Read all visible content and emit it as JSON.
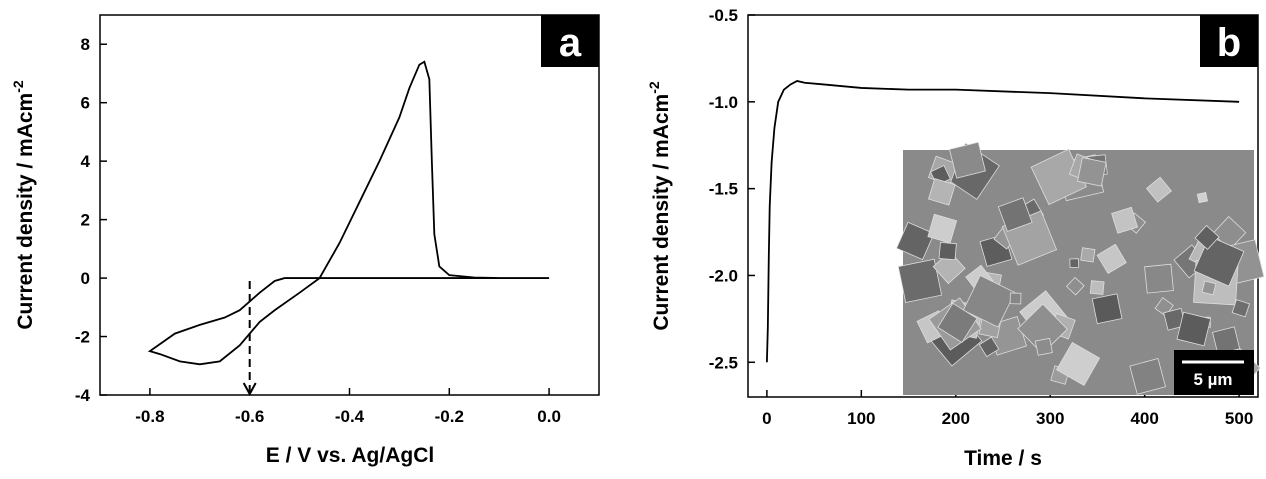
{
  "chart_data": [
    {
      "type": "line",
      "panel_label": "a",
      "xlabel": "E / V  vs. Ag/AgCl",
      "ylabel": "Current density / mAcm",
      "ylabel_sup": "-2",
      "x": [
        0,
        -0.1,
        -0.2,
        -0.3,
        -0.4,
        -0.5,
        -0.53,
        -0.55,
        -0.58,
        -0.62,
        -0.65,
        -0.7,
        -0.75,
        -0.8,
        -0.78,
        -0.74,
        -0.7,
        -0.66,
        -0.62,
        -0.58,
        -0.55,
        -0.5,
        -0.46,
        -0.42,
        -0.38,
        -0.34,
        -0.3,
        -0.28,
        -0.26,
        -0.25,
        -0.24,
        -0.235,
        -0.23,
        -0.22,
        -0.2,
        -0.15,
        -0.1,
        0
      ],
      "values": [
        0,
        0,
        0,
        0,
        0,
        0,
        0,
        -0.1,
        -0.5,
        -1.1,
        -1.35,
        -1.6,
        -1.9,
        -2.5,
        -2.6,
        -2.85,
        -2.95,
        -2.85,
        -2.3,
        -1.5,
        -1.1,
        -0.5,
        0,
        1.2,
        2.6,
        4.0,
        5.5,
        6.5,
        7.3,
        7.4,
        6.8,
        4.0,
        1.5,
        0.4,
        0.1,
        0.02,
        0,
        0
      ],
      "color": "#000000",
      "arrow": {
        "x": -0.6,
        "y_start": -0.1,
        "y_end": -4
      },
      "xlim": [
        -0.9,
        0.1
      ],
      "xticks": [
        -0.8,
        -0.6,
        -0.4,
        -0.2,
        {
          "value": 0,
          "label": "0.0"
        }
      ],
      "ylim": [
        -4,
        9
      ],
      "yticks": [
        -4,
        -2,
        0,
        2,
        4,
        6,
        8
      ]
    },
    {
      "type": "line",
      "panel_label": "b",
      "xlabel": "Time / s",
      "ylabel": "Current density / mAcm",
      "ylabel_sup": "-2",
      "x": [
        0,
        1,
        2,
        3,
        5,
        8,
        12,
        18,
        25,
        32,
        40,
        60,
        100,
        150,
        200,
        300,
        400,
        500
      ],
      "values": [
        -2.5,
        -2.3,
        -1.9,
        -1.6,
        -1.35,
        -1.15,
        -1.0,
        -0.93,
        -0.9,
        -0.88,
        -0.89,
        -0.9,
        -0.92,
        -0.93,
        -0.93,
        -0.95,
        -0.98,
        -1.0
      ],
      "color": "#000000",
      "inset_scale_label": "5 µm",
      "xlim": [
        -20,
        520
      ],
      "xticks": [
        0,
        100,
        200,
        300,
        400,
        500
      ],
      "ylim": [
        -2.7,
        -0.5
      ],
      "yticks": [
        -2.5,
        {
          "value": -2,
          "label": "-2.0"
        },
        -1.5,
        {
          "value": -1,
          "label": "-1.0"
        },
        -0.5
      ]
    }
  ]
}
